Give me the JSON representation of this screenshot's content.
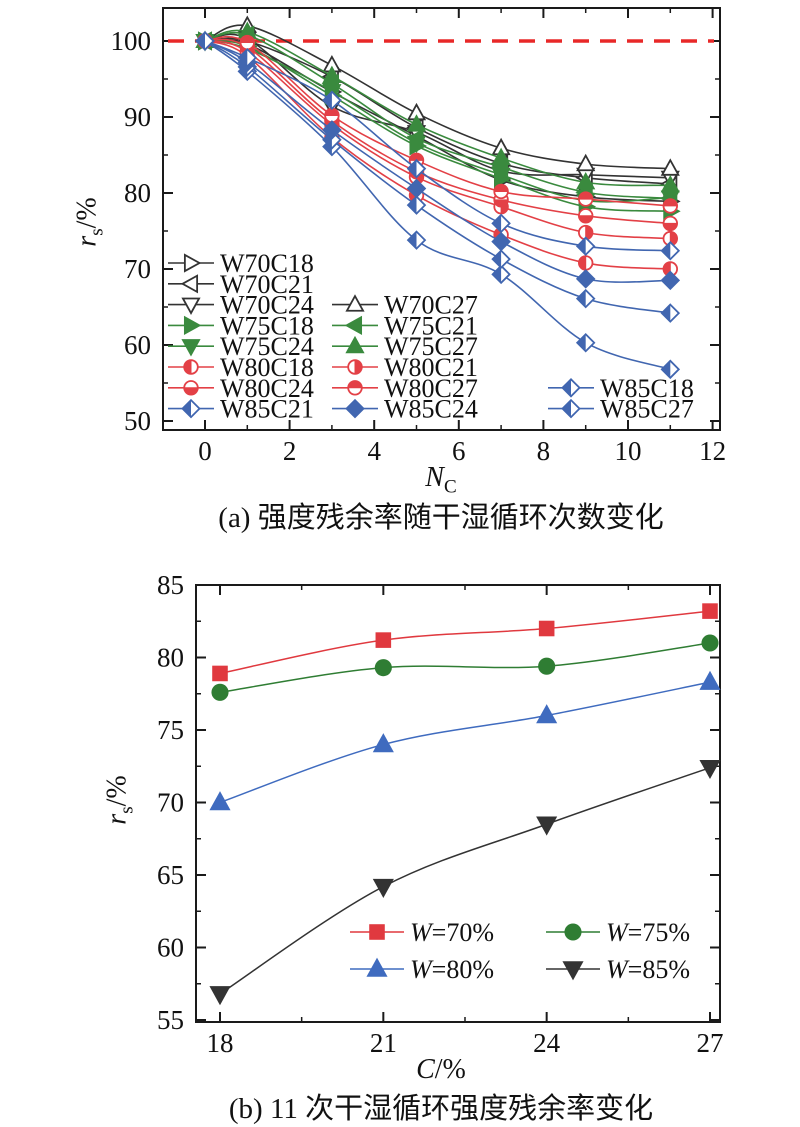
{
  "chart_data": [
    {
      "id": "a",
      "type": "line",
      "caption": "(a) 强度残余率随干湿循环次数变化",
      "xlabel": {
        "main": "N",
        "sub": "C",
        "suffix": ""
      },
      "ylabel": {
        "main": "r",
        "sub": "s",
        "suffix": "/%"
      },
      "xlim": [
        -1,
        12.3
      ],
      "ylim": [
        48.8,
        104.3
      ],
      "xticks": [
        0,
        2,
        4,
        6,
        8,
        10,
        12
      ],
      "xminor": [
        1,
        3,
        5,
        7,
        9,
        11
      ],
      "yticks": [
        50,
        60,
        70,
        80,
        90,
        100
      ],
      "yminor": [
        55,
        65,
        75,
        85,
        95
      ],
      "grid": false,
      "legend_position": "lower-left-inside",
      "reference_line": {
        "y": 100,
        "color": "#e82828",
        "style": "dashed"
      },
      "x": [
        0,
        1,
        3,
        5,
        7,
        9,
        11
      ],
      "series": [
        {
          "name": "W70C18",
          "color": "#333333",
          "marker": "tri-right-open",
          "values": [
            100,
            99.6,
            93.3,
            87.5,
            81.7,
            79.5,
            78.9
          ]
        },
        {
          "name": "W70C21",
          "color": "#333333",
          "marker": "tri-left-open",
          "values": [
            100,
            100.0,
            95.3,
            88.6,
            83.9,
            82.0,
            81.2
          ]
        },
        {
          "name": "W70C24",
          "color": "#333333",
          "marker": "tri-down-open",
          "values": [
            100,
            100.3,
            91.4,
            88.0,
            82.9,
            82.4,
            82.0
          ]
        },
        {
          "name": "W70C27",
          "color": "#333333",
          "marker": "tri-up-open",
          "values": [
            100,
            102.0,
            96.8,
            90.5,
            85.9,
            83.8,
            83.2
          ]
        },
        {
          "name": "W75C18",
          "color": "#3a8a3e",
          "marker": "tri-right",
          "values": [
            100,
            99.3,
            92.8,
            86.2,
            81.9,
            78.2,
            77.6
          ]
        },
        {
          "name": "W75C21",
          "color": "#3a8a3e",
          "marker": "tri-left",
          "values": [
            100,
            100.8,
            94.4,
            87.2,
            83.4,
            80.1,
            79.3
          ]
        },
        {
          "name": "W75C24",
          "color": "#3a8a3e",
          "marker": "tri-down",
          "values": [
            100,
            99.0,
            93.4,
            86.6,
            82.4,
            79.0,
            79.4
          ]
        },
        {
          "name": "W75C27",
          "color": "#3a8a3e",
          "marker": "tri-up",
          "values": [
            100,
            101.2,
            95.4,
            89.0,
            84.6,
            81.4,
            81.0
          ]
        },
        {
          "name": "W80C18",
          "color": "#e34046",
          "marker": "circle-left",
          "values": [
            100,
            98.0,
            87.3,
            79.7,
            74.5,
            70.8,
            70.0
          ]
        },
        {
          "name": "W80C21",
          "color": "#e34046",
          "marker": "circle-right",
          "values": [
            100,
            98.6,
            89.0,
            82.1,
            78.2,
            74.8,
            74.0
          ]
        },
        {
          "name": "W80C24",
          "color": "#e34046",
          "marker": "circle-bottom",
          "values": [
            100,
            99.2,
            89.5,
            82.8,
            79.1,
            77.0,
            76.0
          ]
        },
        {
          "name": "W80C27",
          "color": "#e34046",
          "marker": "circle-top",
          "values": [
            100,
            99.8,
            90.2,
            84.3,
            80.2,
            79.2,
            78.3
          ]
        },
        {
          "name": "W85C18",
          "color": "#4166b0",
          "marker": "diamond-left",
          "values": [
            100,
            96.0,
            86.1,
            73.8,
            69.3,
            60.3,
            56.8
          ]
        },
        {
          "name": "W85C21",
          "color": "#4166b0",
          "marker": "diamond-left",
          "values": [
            100,
            96.6,
            87.0,
            78.4,
            71.3,
            66.1,
            64.2
          ]
        },
        {
          "name": "W85C24",
          "color": "#4166b0",
          "marker": "diamond-filled",
          "values": [
            100,
            97.2,
            88.3,
            80.6,
            73.6,
            68.7,
            68.5
          ]
        },
        {
          "name": "W85C27",
          "color": "#4166b0",
          "marker": "diamond-left",
          "values": [
            100,
            97.8,
            92.2,
            83.2,
            76.0,
            73.0,
            72.4
          ]
        }
      ],
      "legend_rows": [
        [
          "W70C18"
        ],
        [
          "W70C21"
        ],
        [
          "W70C24",
          "W70C27"
        ],
        [
          "W75C18",
          "W75C21"
        ],
        [
          "W75C24",
          "W75C27"
        ],
        [
          "W80C18",
          "W80C21"
        ],
        [
          "W80C24",
          "W80C27",
          "W85C18"
        ],
        [
          "W85C21",
          "W85C24",
          "W85C27"
        ]
      ]
    },
    {
      "id": "b",
      "type": "line",
      "caption": "(b) 11 次干湿循环强度残余率变化",
      "xlabel": {
        "main": "C",
        "sub": "",
        "suffix": "/%"
      },
      "ylabel": {
        "main": "r",
        "sub": "s",
        "suffix": "/%"
      },
      "xlim": [
        16.7,
        27.2
      ],
      "ylim": [
        53.5,
        85
      ],
      "xticks": [
        18,
        21,
        24,
        27
      ],
      "xminor": [
        19.5,
        22.5,
        25.5
      ],
      "yticks": [
        55,
        60,
        65,
        70,
        75,
        80,
        85
      ],
      "yminor": [
        57.5,
        62.5,
        67.5,
        72.5,
        77.5,
        82.5
      ],
      "grid": false,
      "legend_position": "lower-right-inside",
      "x": [
        18,
        21,
        24,
        27
      ],
      "series": [
        {
          "name": "W=70%",
          "color": "#e0393f",
          "marker": "square",
          "values": [
            78.9,
            81.2,
            82.0,
            83.2
          ]
        },
        {
          "name": "W=75%",
          "color": "#2f7d33",
          "marker": "circle",
          "values": [
            77.6,
            79.3,
            79.4,
            81.0
          ]
        },
        {
          "name": "W=80%",
          "color": "#3f6bbf",
          "marker": "tri-up",
          "values": [
            70.0,
            74.0,
            76.0,
            78.3
          ]
        },
        {
          "name": "W=85%",
          "color": "#333333",
          "marker": "tri-down",
          "values": [
            56.8,
            64.2,
            68.5,
            72.4
          ]
        }
      ],
      "legend_rows": [
        [
          "W=70%",
          "W=75%"
        ],
        [
          "W=80%",
          "W=85%"
        ]
      ]
    }
  ]
}
